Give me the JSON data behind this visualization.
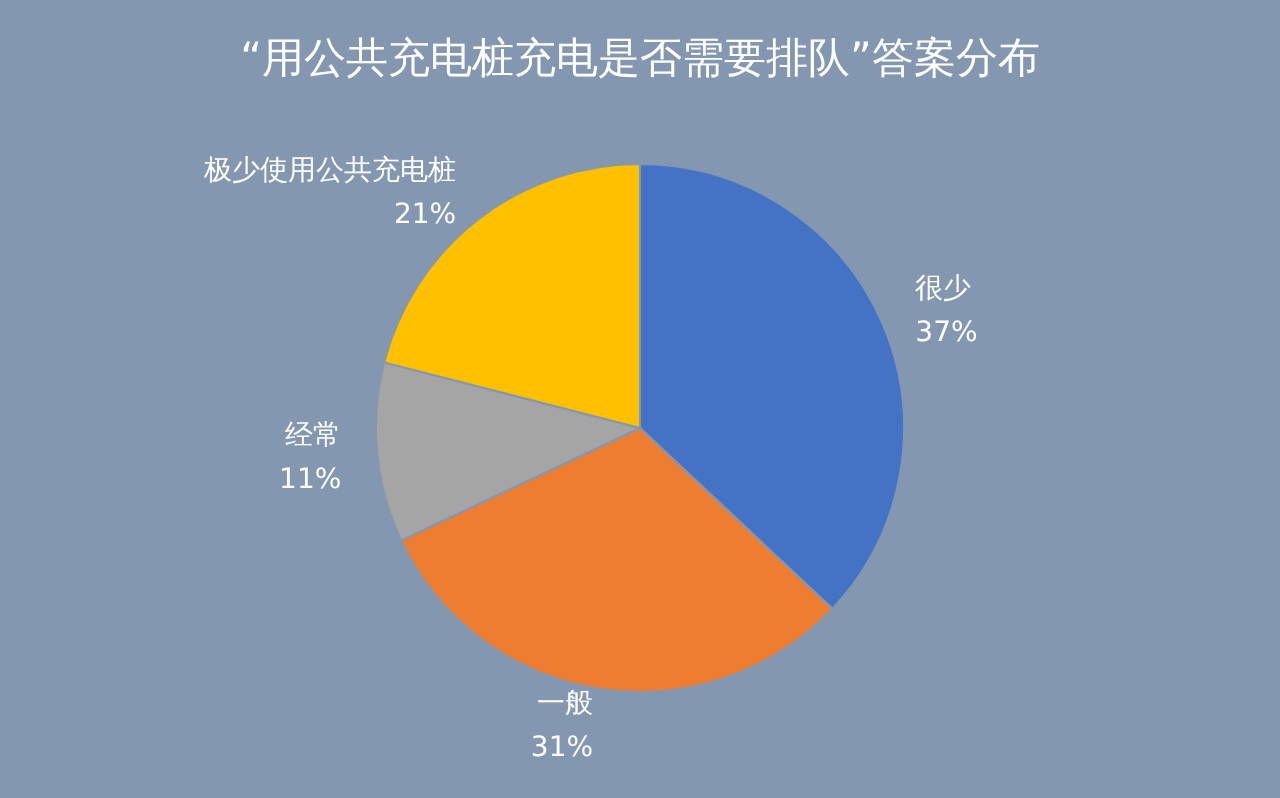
{
  "chart_data": {
    "type": "pie",
    "title": "“用公共充电桩充电是否需要排队”答案分布",
    "categories": [
      "很少",
      "一般",
      "经常",
      "极少使用公共充电桩"
    ],
    "values": [
      37,
      31,
      11,
      21
    ],
    "colors": [
      "#4472c4",
      "#ed7d31",
      "#a5a5a5",
      "#ffc000"
    ],
    "value_labels": [
      "37%",
      "31%",
      "11%",
      "21%"
    ],
    "legend": false
  }
}
